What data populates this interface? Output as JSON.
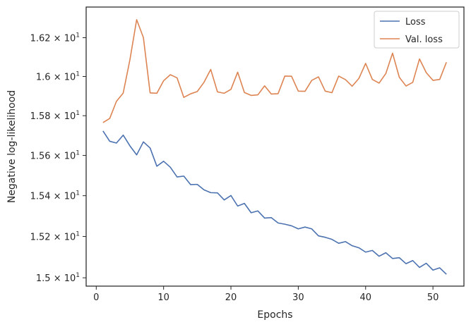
{
  "chart_data": {
    "type": "line",
    "title": "",
    "xlabel": "Epochs",
    "ylabel": "Negative log-likelihood",
    "y_scale": "log",
    "xlim": [
      -1.5,
      54.6
    ],
    "ylim": [
      14.96,
      16.36
    ],
    "x_ticks": [
      0,
      10,
      20,
      30,
      40,
      50
    ],
    "x_tick_labels": [
      "0",
      "10",
      "20",
      "30",
      "40",
      "50"
    ],
    "y_ticks": [
      15.0,
      15.2,
      15.4,
      15.6,
      15.8,
      16.0,
      16.2
    ],
    "y_tick_labels": [
      {
        "mantissa": "1.5",
        "exp": "1"
      },
      {
        "mantissa": "1.52",
        "exp": "1"
      },
      {
        "mantissa": "1.54",
        "exp": "1"
      },
      {
        "mantissa": "1.56",
        "exp": "1"
      },
      {
        "mantissa": "1.58",
        "exp": "1"
      },
      {
        "mantissa": "1.6",
        "exp": "1"
      },
      {
        "mantissa": "1.62",
        "exp": "1"
      }
    ],
    "tick_label_times": "×",
    "tick_label_base": "10",
    "grid": false,
    "legend_position": "upper right",
    "series": [
      {
        "name": "Loss",
        "color": "#4c72b0",
        "x": [
          1,
          2,
          3,
          4,
          5,
          6,
          7,
          8,
          9,
          10,
          11,
          12,
          13,
          14,
          15,
          16,
          17,
          18,
          19,
          20,
          21,
          22,
          23,
          24,
          25,
          26,
          27,
          28,
          29,
          30,
          31,
          32,
          33,
          34,
          35,
          36,
          37,
          38,
          39,
          40,
          41,
          42,
          43,
          44,
          45,
          46,
          47,
          48,
          49,
          50,
          51,
          52
        ],
        "values": [
          15.723,
          15.671,
          15.662,
          15.702,
          15.648,
          15.603,
          15.668,
          15.637,
          15.546,
          15.571,
          15.541,
          15.493,
          15.497,
          15.455,
          15.456,
          15.429,
          15.415,
          15.414,
          15.379,
          15.401,
          15.349,
          15.362,
          15.316,
          15.325,
          15.29,
          15.292,
          15.266,
          15.26,
          15.252,
          15.237,
          15.246,
          15.237,
          15.203,
          15.196,
          15.186,
          15.167,
          15.175,
          15.155,
          15.145,
          15.124,
          15.132,
          15.104,
          15.121,
          15.093,
          15.097,
          15.068,
          15.083,
          15.05,
          15.07,
          15.037,
          15.048,
          15.017
        ]
      },
      {
        "name": "Val. loss",
        "color": "#dd8452",
        "x": [
          1,
          2,
          3,
          4,
          5,
          6,
          7,
          8,
          9,
          10,
          11,
          12,
          13,
          14,
          15,
          16,
          17,
          18,
          19,
          20,
          21,
          22,
          23,
          24,
          25,
          26,
          27,
          28,
          29,
          30,
          31,
          32,
          33,
          34,
          35,
          36,
          37,
          38,
          39,
          40,
          41,
          42,
          43,
          44,
          45,
          46,
          47,
          48,
          49,
          50,
          51,
          52
        ],
        "values": [
          15.765,
          15.786,
          15.873,
          15.915,
          16.086,
          16.294,
          16.201,
          15.916,
          15.914,
          15.978,
          16.009,
          15.993,
          15.893,
          15.911,
          15.923,
          15.97,
          16.036,
          15.921,
          15.914,
          15.934,
          16.022,
          15.918,
          15.903,
          15.906,
          15.952,
          15.91,
          15.912,
          16.002,
          16.001,
          15.925,
          15.924,
          15.98,
          15.998,
          15.925,
          15.917,
          16.002,
          15.984,
          15.95,
          15.99,
          16.067,
          15.985,
          15.966,
          16.015,
          16.12,
          15.996,
          15.951,
          15.97,
          16.09,
          16.02,
          15.98,
          15.985,
          16.073
        ]
      }
    ]
  }
}
